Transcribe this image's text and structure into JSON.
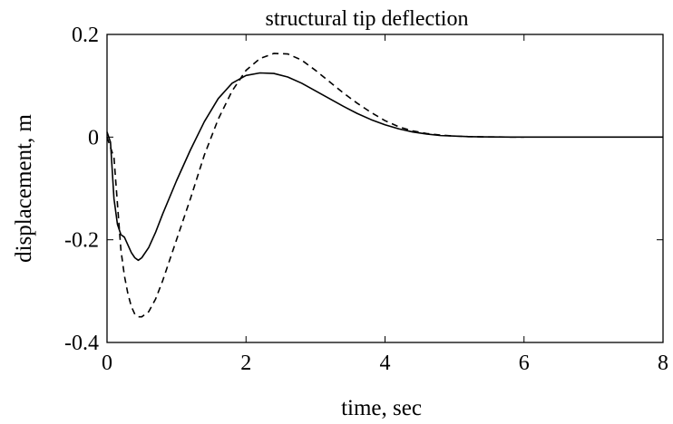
{
  "chart_data": {
    "type": "line",
    "title": "structural tip deflection",
    "xlabel": "time, sec",
    "ylabel": "displacement, m",
    "xlim": [
      0,
      8
    ],
    "ylim": [
      -0.4,
      0.2
    ],
    "xticks": [
      0,
      2,
      4,
      6,
      8
    ],
    "xtick_labels": [
      "0",
      "2",
      "4",
      "6",
      "8"
    ],
    "yticks": [
      -0.4,
      -0.2,
      0,
      0.2
    ],
    "ytick_labels": [
      "-0.4",
      "-0.2",
      "0",
      "0.2"
    ],
    "grid": false,
    "series": [
      {
        "style": "solid",
        "color": "#000000",
        "x": [
          0,
          0.05,
          0.1,
          0.15,
          0.2,
          0.25,
          0.3,
          0.35,
          0.4,
          0.45,
          0.5,
          0.6,
          0.7,
          0.8,
          1.0,
          1.2,
          1.4,
          1.6,
          1.8,
          2.0,
          2.2,
          2.4,
          2.6,
          2.8,
          3.0,
          3.2,
          3.4,
          3.6,
          3.8,
          4.0,
          4.2,
          4.4,
          4.6,
          4.8,
          5.0,
          5.2,
          5.4,
          5.6,
          5.8,
          6.0,
          6.5,
          7.0,
          7.5,
          8.0
        ],
        "y": [
          0.01,
          -0.01,
          -0.12,
          -0.17,
          -0.19,
          -0.195,
          -0.21,
          -0.225,
          -0.235,
          -0.24,
          -0.235,
          -0.215,
          -0.185,
          -0.15,
          -0.085,
          -0.025,
          0.03,
          0.075,
          0.105,
          0.12,
          0.125,
          0.124,
          0.117,
          0.105,
          0.09,
          0.075,
          0.06,
          0.046,
          0.034,
          0.024,
          0.016,
          0.01,
          0.006,
          0.003,
          0.002,
          0.001,
          0.0005,
          0.0002,
          0.0001,
          0,
          0,
          0,
          0,
          0
        ]
      },
      {
        "style": "dashed",
        "color": "#000000",
        "x": [
          0,
          0.1,
          0.2,
          0.25,
          0.3,
          0.35,
          0.4,
          0.45,
          0.5,
          0.6,
          0.7,
          0.8,
          1.0,
          1.2,
          1.4,
          1.6,
          1.8,
          2.0,
          2.2,
          2.4,
          2.6,
          2.8,
          3.0,
          3.2,
          3.4,
          3.6,
          3.8,
          4.0,
          4.2,
          4.4,
          4.6,
          4.8,
          5.0,
          5.2,
          5.4,
          5.6,
          5.8,
          6.0
        ],
        "y": [
          0.0,
          -0.04,
          -0.22,
          -0.27,
          -0.305,
          -0.33,
          -0.345,
          -0.35,
          -0.35,
          -0.34,
          -0.315,
          -0.28,
          -0.2,
          -0.12,
          -0.035,
          0.035,
          0.09,
          0.13,
          0.153,
          0.163,
          0.162,
          0.15,
          0.13,
          0.108,
          0.086,
          0.066,
          0.048,
          0.032,
          0.02,
          0.012,
          0.007,
          0.004,
          0.002,
          0.001,
          0.0005,
          0.0002,
          0.0001,
          0
        ]
      }
    ]
  }
}
